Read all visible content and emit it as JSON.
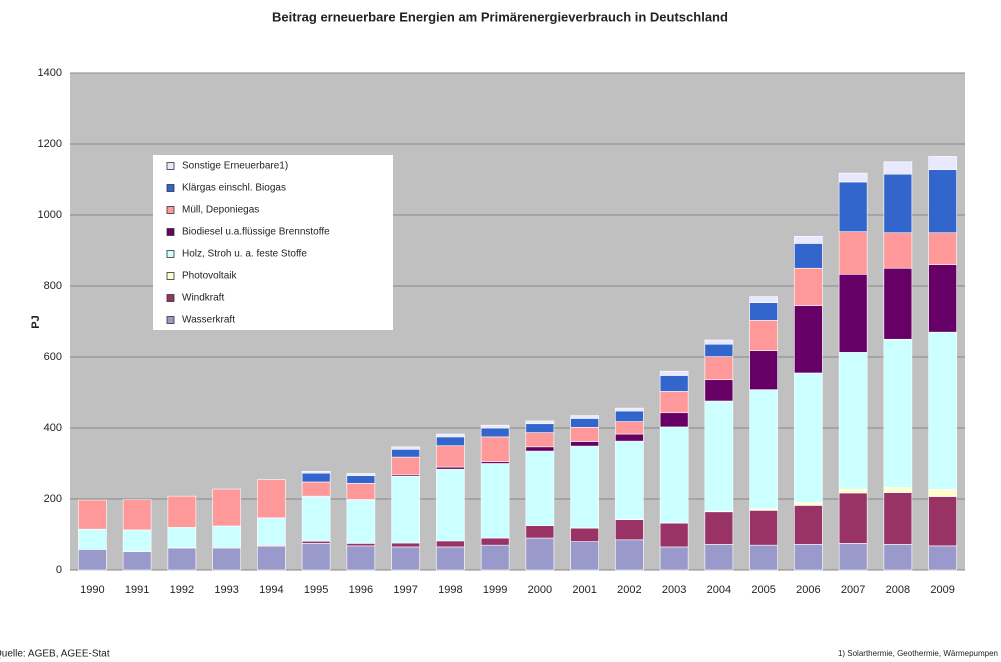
{
  "chart_data": {
    "type": "stacked-bar",
    "title": "Beitrag erneuerbare Energien am Primärenergieverbrauch in Deutschland",
    "y_label": "PJ",
    "source": "Quelle: AGEB, AGEE-Stat",
    "footnote": "1) Solarthermie, Geothermie, Wärmepumpen",
    "categories": [
      "1990",
      "1991",
      "1992",
      "1993",
      "1994",
      "1995",
      "1996",
      "1997",
      "1998",
      "1999",
      "2000",
      "2001",
      "2002",
      "2003",
      "2004",
      "2005",
      "2006",
      "2007",
      "2008",
      "2009"
    ],
    "series": [
      {
        "name": "Wasserkraft",
        "color": "#9999cc",
        "values": [
          58,
          52,
          62,
          62,
          66,
          75,
          68,
          65,
          65,
          70,
          90,
          80,
          85,
          65,
          72,
          70,
          72,
          75,
          72,
          68
        ]
      },
      {
        "name": "Windkraft",
        "color": "#993366",
        "values": [
          0,
          1,
          1,
          2,
          3,
          6,
          7,
          11,
          17,
          20,
          35,
          38,
          57,
          67,
          92,
          98,
          110,
          142,
          146,
          139
        ]
      },
      {
        "name": "Photovoltaik",
        "color": "#ffffcc",
        "values": [
          0,
          0,
          0,
          0,
          0,
          0,
          0,
          0,
          0,
          0,
          0,
          1,
          1,
          1,
          2,
          5,
          8,
          11,
          15,
          20
        ]
      },
      {
        "name": "Holz, Stroh u. a. feste Stoffe",
        "color": "#ccffff",
        "values": [
          57,
          60,
          57,
          60,
          78,
          125,
          122,
          188,
          202,
          210,
          210,
          230,
          220,
          270,
          310,
          335,
          365,
          385,
          417,
          443
        ]
      },
      {
        "name": "Biodiesel u.a.flüssige Brennstoffe",
        "color": "#660066",
        "values": [
          0,
          0,
          0,
          0,
          0,
          2,
          2,
          4,
          6,
          5,
          12,
          13,
          20,
          40,
          60,
          110,
          190,
          220,
          200,
          190
        ]
      },
      {
        "name": "Müll, Deponiegas",
        "color": "#ff9999",
        "values": [
          82,
          85,
          88,
          104,
          108,
          40,
          45,
          50,
          60,
          70,
          40,
          40,
          35,
          60,
          65,
          85,
          105,
          120,
          100,
          90
        ]
      },
      {
        "name": "Klärgas einschl. Biogas",
        "color": "#3366cc",
        "values": [
          0,
          0,
          0,
          0,
          0,
          25,
          22,
          22,
          25,
          25,
          25,
          25,
          30,
          45,
          35,
          50,
          70,
          140,
          165,
          178
        ]
      },
      {
        "name": "Sonstige Erneuerbare1)",
        "color": "#e8e8ff",
        "values": [
          0,
          0,
          0,
          0,
          0,
          5,
          6,
          7,
          8,
          8,
          8,
          8,
          8,
          12,
          12,
          17,
          20,
          25,
          35,
          37
        ]
      }
    ],
    "ylim": [
      0,
      1400
    ],
    "yticks": [
      0,
      200,
      400,
      600,
      800,
      1000,
      1200,
      1400
    ],
    "grid": true,
    "legend": "upper left"
  }
}
